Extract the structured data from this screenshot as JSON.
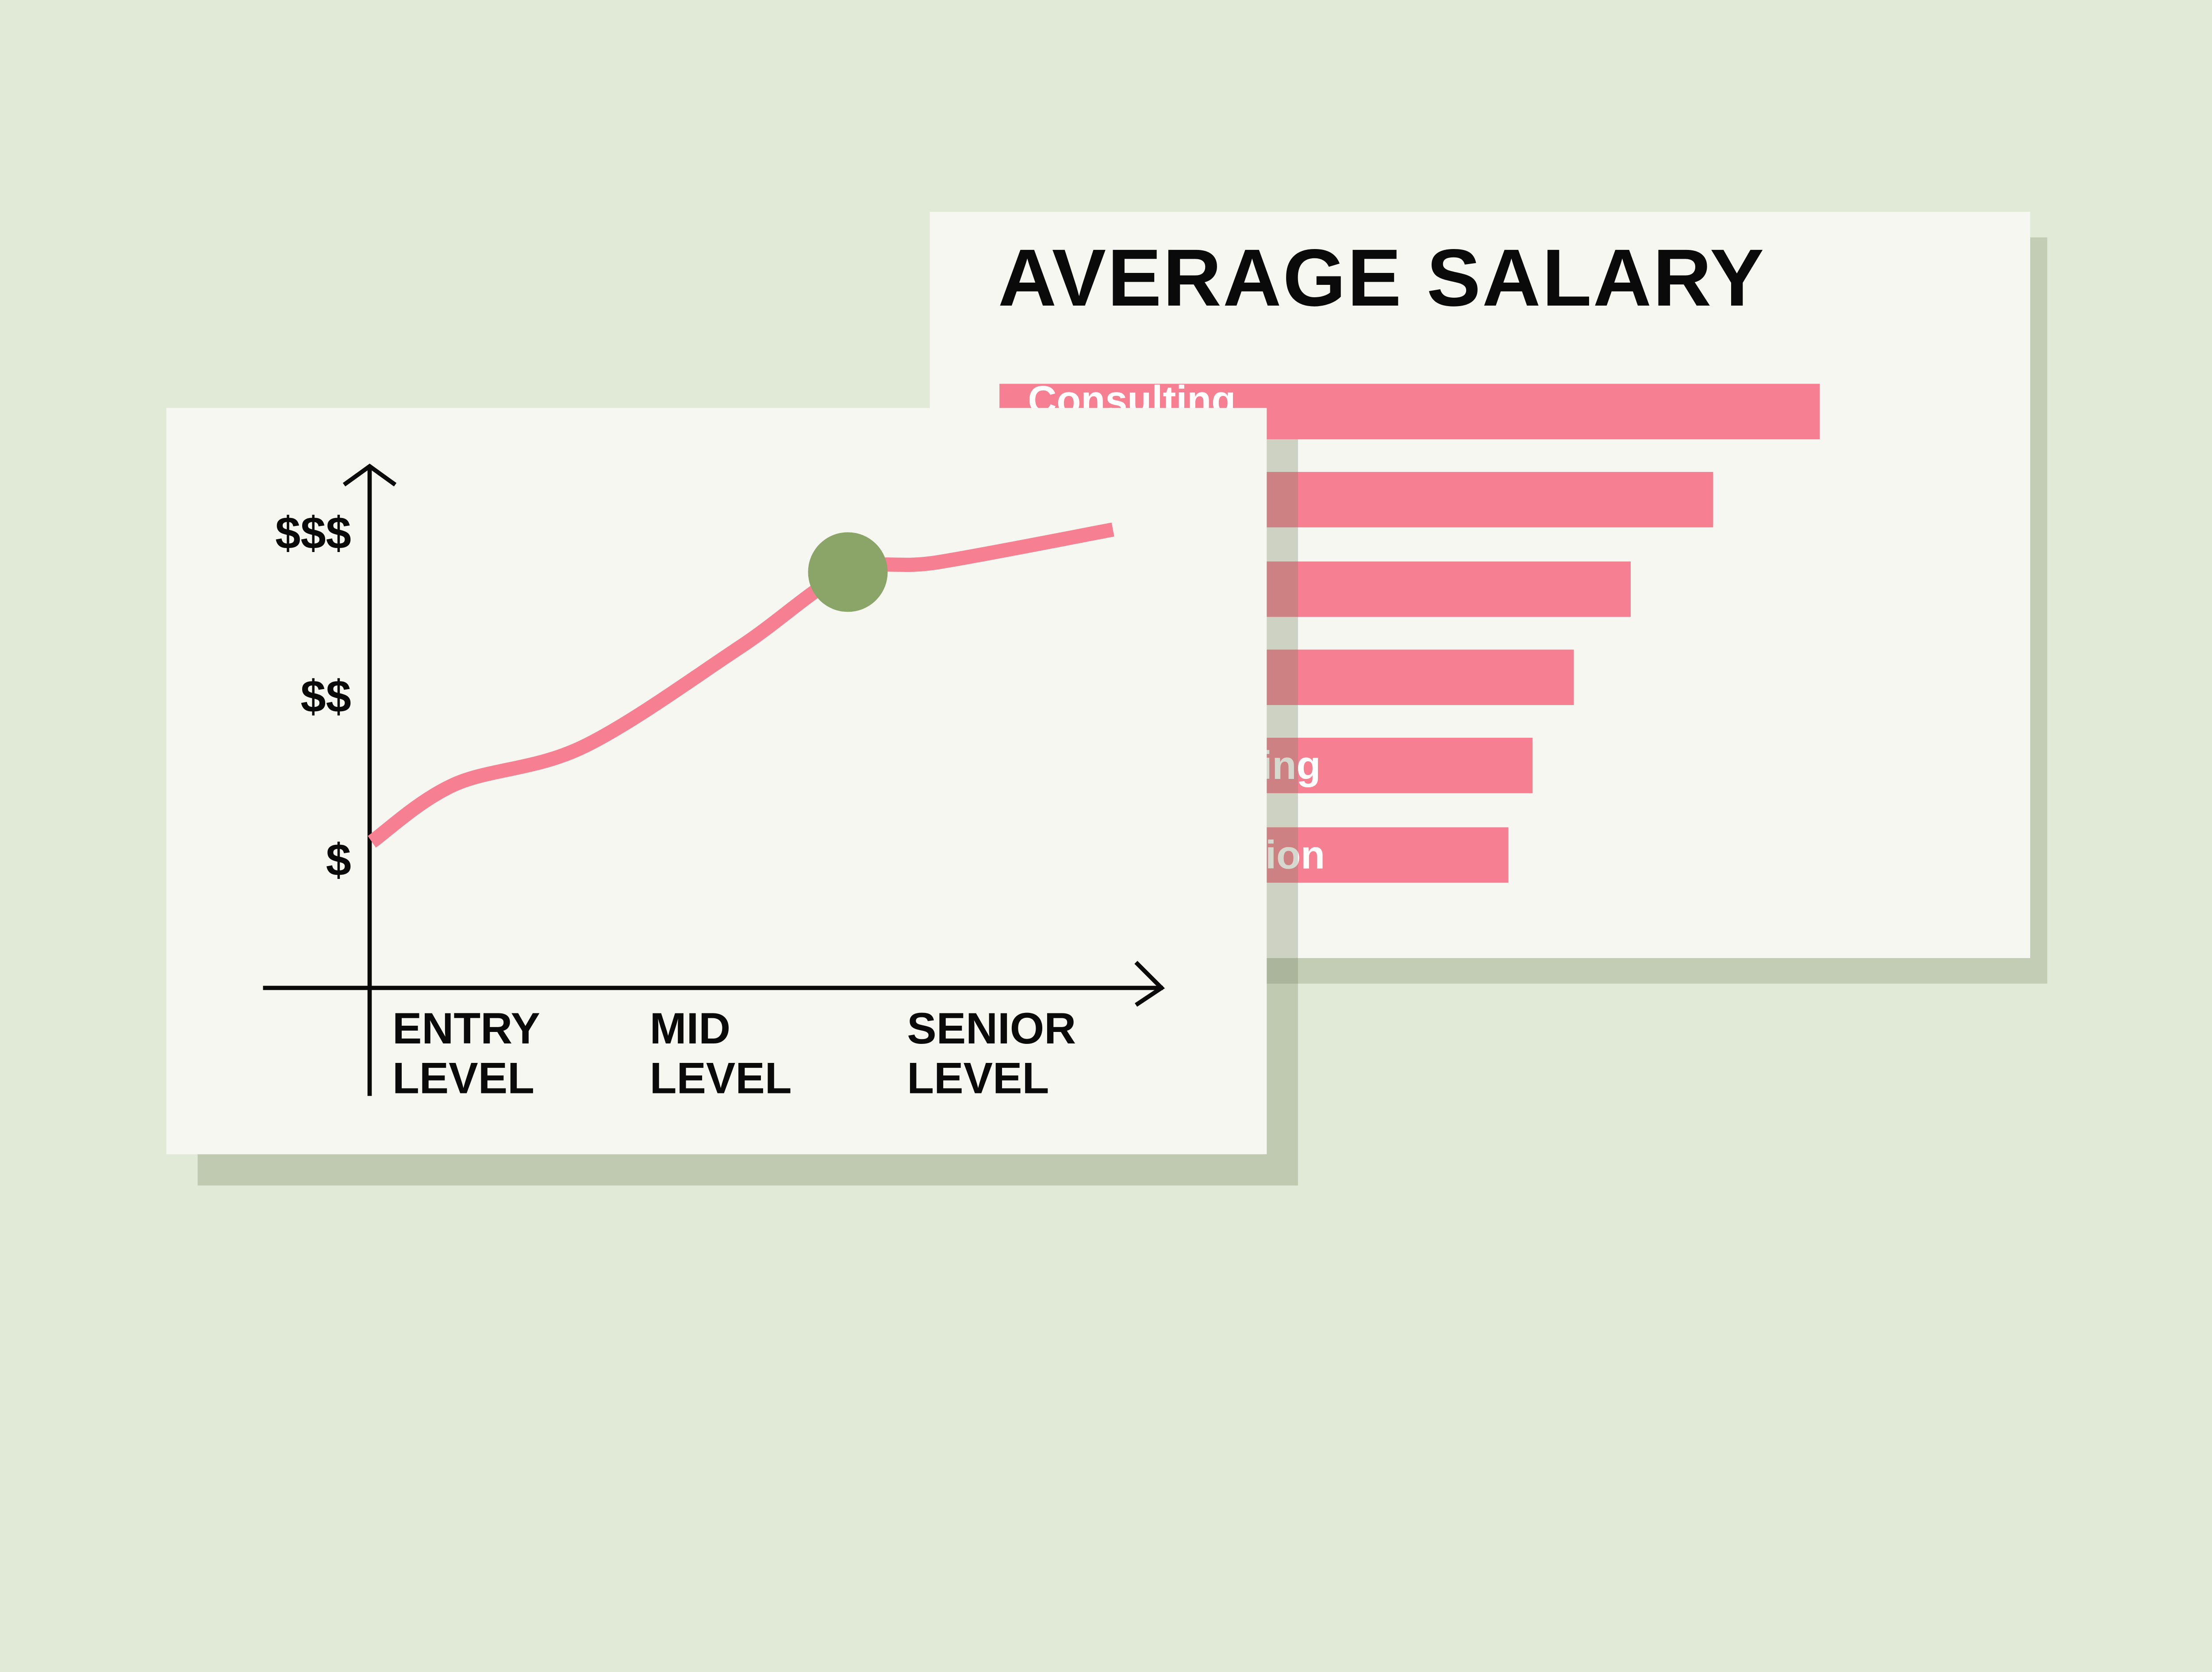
{
  "colors": {
    "background": "#e1ead6",
    "card": "#f6f7f1",
    "bar": "#f77f92",
    "line": "#f77f92",
    "highlight_point": "#8ba467",
    "axis": "#0a0a0a"
  },
  "chart_data": [
    {
      "type": "bar",
      "orientation": "horizontal",
      "title": "AVERAGE SALARY",
      "categories": [
        "Consulting",
        "",
        "",
        "",
        "ing",
        "ion"
      ],
      "values": [
        100,
        87,
        77,
        70,
        65,
        62
      ],
      "value_note_units": "relative length, largest = 100"
    },
    {
      "type": "line",
      "categories": [
        "ENTRY\nLEVEL",
        "MID\nLEVEL",
        "SENIOR\nLEVEL"
      ],
      "y_tick_labels": [
        "$",
        "$$",
        "$$$"
      ],
      "x": [
        -0.08,
        0.24,
        0.74,
        1.35,
        1.77,
        2.12,
        2.8
      ],
      "y": [
        1.12,
        1.47,
        1.7,
        2.31,
        2.77,
        2.83,
        3.03
      ],
      "highlight": {
        "x": 1.77,
        "y": 2.77
      },
      "grid": false
    }
  ]
}
